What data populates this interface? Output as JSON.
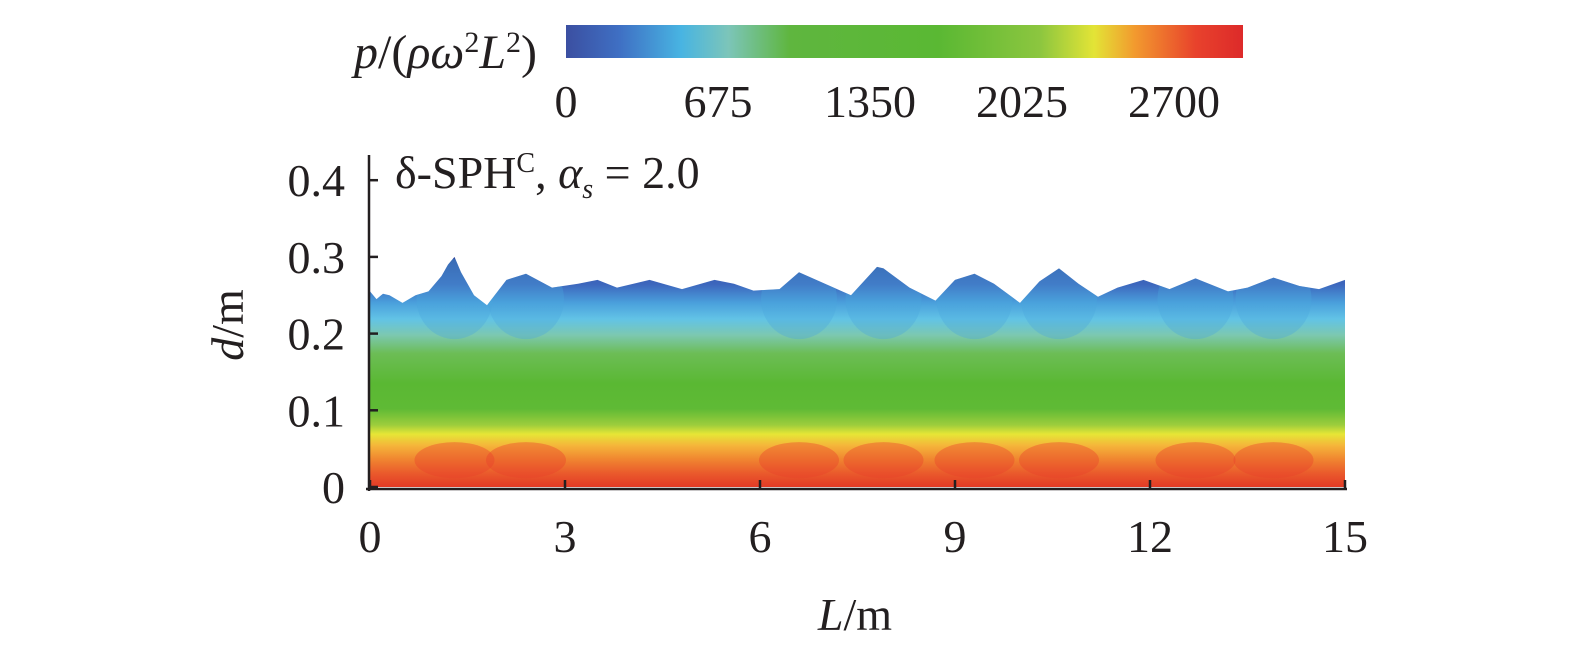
{
  "chart_data": {
    "type": "heatmap",
    "panel_note": {
      "method": "δ-SPH",
      "method_sup": "C",
      "param_symbol": "α",
      "param_sub": "s",
      "param_rest": " = 2.0"
    },
    "colorbar": {
      "label": {
        "p": "p",
        "slash_open": "/(",
        "rho_omega": "ρω",
        "two_a": "2",
        "L": "L",
        "two_b": "2",
        "close": ")"
      },
      "ticks": [
        "0",
        "675",
        "1350",
        "2025",
        "2700"
      ],
      "range": [
        0,
        2700
      ],
      "colors": [
        "#3b4fa1",
        "#3f70c4",
        "#48b4e2",
        "#7cc5b9",
        "#5fb63f",
        "#5ab833",
        "#8cc63f",
        "#e3e436",
        "#f29a2e",
        "#e8422c",
        "#dd2a2a"
      ]
    },
    "x_axis": {
      "label_var": "L",
      "label_unit": "/m",
      "ticks": [
        "0",
        "3",
        "6",
        "9",
        "12",
        "15"
      ],
      "range": [
        0,
        15
      ]
    },
    "y_axis": {
      "label_var": "d",
      "label_unit": "/m",
      "ticks": [
        "0",
        "0.1",
        "0.2",
        "0.3",
        "0.4"
      ],
      "range": [
        0,
        0.42
      ]
    },
    "free_surface": {
      "x": [
        0.0,
        0.1,
        0.2,
        0.3,
        0.5,
        0.7,
        0.9,
        1.1,
        1.2,
        1.3,
        1.4,
        1.6,
        1.8,
        1.9,
        2.1,
        2.4,
        2.8,
        3.2,
        3.5,
        3.8,
        4.3,
        4.8,
        5.3,
        5.6,
        5.9,
        6.3,
        6.6,
        7.0,
        7.4,
        7.8,
        7.9,
        8.3,
        8.7,
        9.0,
        9.3,
        9.6,
        10.0,
        10.3,
        10.6,
        10.9,
        11.2,
        11.5,
        11.9,
        12.3,
        12.7,
        13.2,
        13.5,
        13.9,
        14.3,
        14.6,
        15.0
      ],
      "y": [
        0.255,
        0.245,
        0.252,
        0.25,
        0.24,
        0.25,
        0.255,
        0.275,
        0.29,
        0.3,
        0.28,
        0.25,
        0.237,
        0.248,
        0.27,
        0.278,
        0.26,
        0.265,
        0.27,
        0.26,
        0.27,
        0.258,
        0.27,
        0.265,
        0.256,
        0.258,
        0.28,
        0.265,
        0.25,
        0.287,
        0.285,
        0.26,
        0.243,
        0.27,
        0.278,
        0.265,
        0.24,
        0.268,
        0.285,
        0.265,
        0.248,
        0.26,
        0.27,
        0.258,
        0.272,
        0.255,
        0.26,
        0.273,
        0.262,
        0.258,
        0.27
      ]
    }
  }
}
